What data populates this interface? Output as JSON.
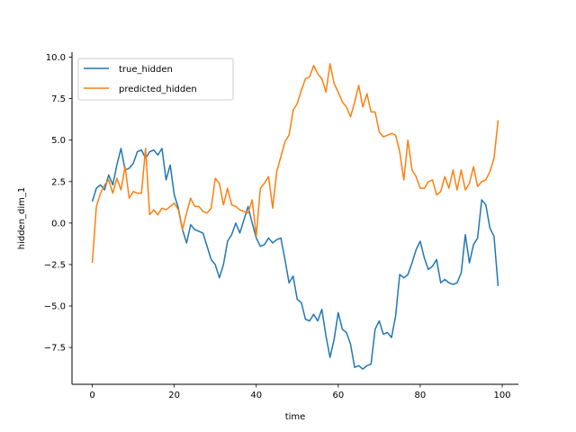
{
  "chart_data": {
    "type": "line",
    "xlabel": "time",
    "ylabel": "hidden_dim_1",
    "xlim": [
      -4.95,
      103.95
    ],
    "ylim": [
      -9.72,
      10.3
    ],
    "xticks": [
      0,
      20,
      40,
      60,
      80,
      100
    ],
    "yticks": [
      -7.5,
      -5.0,
      -2.5,
      0.0,
      2.5,
      5.0,
      7.5,
      10.0
    ],
    "xtick_labels": [
      "0",
      "20",
      "40",
      "60",
      "80",
      "100"
    ],
    "ytick_labels": [
      "−7.5",
      "−5.0",
      "−2.5",
      "0.0",
      "2.5",
      "5.0",
      "7.5",
      "10.0"
    ],
    "grid": false,
    "legend_position": "top-left",
    "series": [
      {
        "name": "true_hidden",
        "color": "#1f77b4",
        "x": [
          0,
          1,
          2,
          3,
          4,
          5,
          6,
          7,
          8,
          9,
          10,
          11,
          12,
          13,
          14,
          15,
          16,
          17,
          18,
          19,
          20,
          21,
          22,
          23,
          24,
          25,
          26,
          27,
          28,
          29,
          30,
          31,
          32,
          33,
          34,
          35,
          36,
          37,
          38,
          39,
          40,
          41,
          42,
          43,
          44,
          45,
          46,
          47,
          48,
          49,
          50,
          51,
          52,
          53,
          54,
          55,
          56,
          57,
          58,
          59,
          60,
          61,
          62,
          63,
          64,
          65,
          66,
          67,
          68,
          69,
          70,
          71,
          72,
          73,
          74,
          75,
          76,
          77,
          78,
          79,
          80,
          81,
          82,
          83,
          84,
          85,
          86,
          87,
          88,
          89,
          90,
          91,
          92,
          93,
          94,
          95,
          96,
          97,
          98,
          99
        ],
        "values": [
          1.3,
          2.1,
          2.3,
          2.0,
          2.9,
          2.3,
          3.5,
          4.5,
          3.2,
          3.3,
          3.6,
          4.3,
          4.4,
          3.9,
          4.3,
          4.4,
          4.1,
          4.5,
          2.6,
          3.5,
          1.7,
          0.9,
          -0.4,
          -1.2,
          -0.1,
          -0.4,
          -0.5,
          -0.6,
          -1.4,
          -2.2,
          -2.5,
          -3.3,
          -2.5,
          -1.1,
          -0.7,
          0.0,
          -0.6,
          0.2,
          1.0,
          0.0,
          -0.9,
          -1.4,
          -1.3,
          -0.9,
          -1.2,
          -1.0,
          -0.9,
          -2.2,
          -3.6,
          -3.2,
          -4.6,
          -4.8,
          -5.8,
          -5.9,
          -5.5,
          -5.9,
          -5.2,
          -6.8,
          -8.1,
          -7.0,
          -5.4,
          -6.4,
          -6.6,
          -7.3,
          -8.7,
          -8.6,
          -8.8,
          -8.6,
          -8.5,
          -6.4,
          -5.9,
          -6.7,
          -6.6,
          -6.9,
          -5.6,
          -3.1,
          -3.3,
          -3.1,
          -2.4,
          -1.6,
          -1.1,
          -2.1,
          -2.8,
          -2.6,
          -2.2,
          -3.6,
          -3.4,
          -3.6,
          -3.7,
          -3.6,
          -3.0,
          -0.7,
          -2.4,
          -1.3,
          -0.9,
          1.4,
          1.1,
          -0.3,
          -0.8,
          -3.8
        ]
      },
      {
        "name": "predicted_hidden",
        "color": "#ff7f0e",
        "x": [
          0,
          1,
          2,
          3,
          4,
          5,
          6,
          7,
          8,
          9,
          10,
          11,
          12,
          13,
          14,
          15,
          16,
          17,
          18,
          19,
          20,
          21,
          22,
          23,
          24,
          25,
          26,
          27,
          28,
          29,
          30,
          31,
          32,
          33,
          34,
          35,
          36,
          37,
          38,
          39,
          40,
          41,
          42,
          43,
          44,
          45,
          46,
          47,
          48,
          49,
          50,
          51,
          52,
          53,
          54,
          55,
          56,
          57,
          58,
          59,
          60,
          61,
          62,
          63,
          64,
          65,
          66,
          67,
          68,
          69,
          70,
          71,
          72,
          73,
          74,
          75,
          76,
          77,
          78,
          79,
          80,
          81,
          82,
          83,
          84,
          85,
          86,
          87,
          88,
          89,
          90,
          91,
          92,
          93,
          94,
          95,
          96,
          97,
          98,
          99
        ],
        "values": [
          -2.4,
          1.0,
          1.8,
          2.3,
          2.6,
          1.8,
          2.7,
          2.0,
          3.4,
          1.5,
          1.9,
          1.8,
          1.8,
          4.5,
          0.5,
          0.8,
          0.5,
          0.9,
          0.8,
          1.0,
          1.2,
          0.8,
          -0.4,
          0.6,
          1.5,
          1.0,
          1.0,
          0.7,
          0.6,
          0.9,
          2.7,
          2.4,
          1.1,
          2.1,
          1.1,
          1.0,
          0.8,
          0.7,
          0.6,
          1.4,
          -0.8,
          2.1,
          2.4,
          2.8,
          0.9,
          3.1,
          4.0,
          4.9,
          5.3,
          6.8,
          7.2,
          8.0,
          8.7,
          8.8,
          9.5,
          9.0,
          8.7,
          7.9,
          9.6,
          8.4,
          7.9,
          7.3,
          7.0,
          6.4,
          7.3,
          8.3,
          7.0,
          7.8,
          6.7,
          6.7,
          5.5,
          5.2,
          5.3,
          5.4,
          5.3,
          4.3,
          2.6,
          5.0,
          3.2,
          2.8,
          2.1,
          2.1,
          2.5,
          2.6,
          1.7,
          1.9,
          2.8,
          2.1,
          3.2,
          2.0,
          3.2,
          2.0,
          2.4,
          3.4,
          2.2,
          2.5,
          2.6,
          3.1,
          3.9,
          6.2
        ]
      }
    ]
  }
}
